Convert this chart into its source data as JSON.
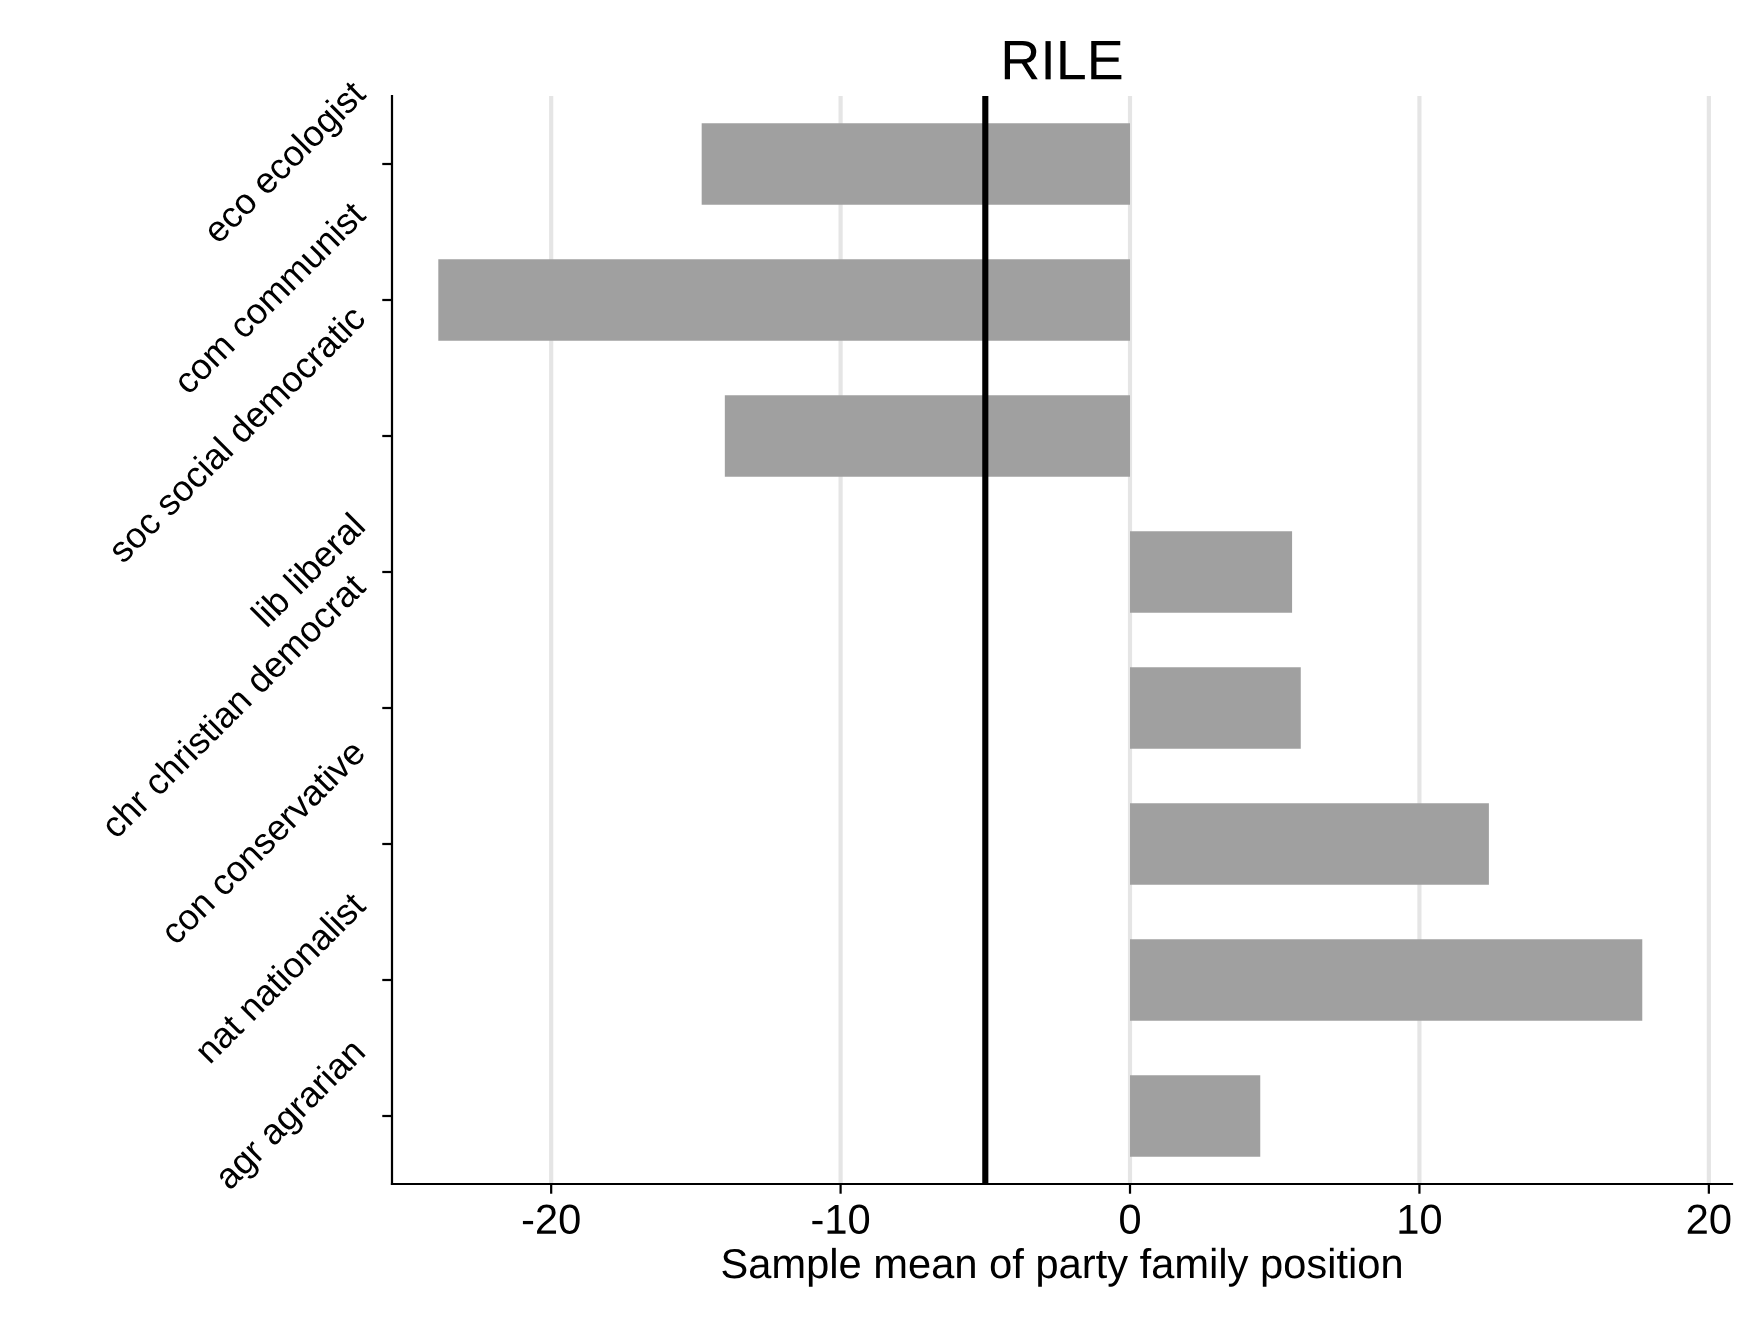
{
  "chart_data": {
    "type": "bar",
    "orientation": "horizontal",
    "title": "RILE",
    "xlabel": "Sample mean of party family position",
    "categories": [
      "eco ecologist",
      "com communist",
      "soc social democratic",
      "lib liberal",
      "chr christian democrat",
      "con conservative",
      "nat nationalist",
      "agr agrarian"
    ],
    "values": [
      -14.8,
      -23.9,
      -14.0,
      5.6,
      5.9,
      12.4,
      17.7,
      4.5
    ],
    "color": "#a0a0a0",
    "xlim": [
      -25.5,
      20.8
    ],
    "xticks": [
      -20,
      -10,
      0,
      10,
      20
    ],
    "grid": "x",
    "ref_lines": [
      {
        "axis": "x",
        "value": -5.0,
        "color": "#000000"
      }
    ]
  }
}
